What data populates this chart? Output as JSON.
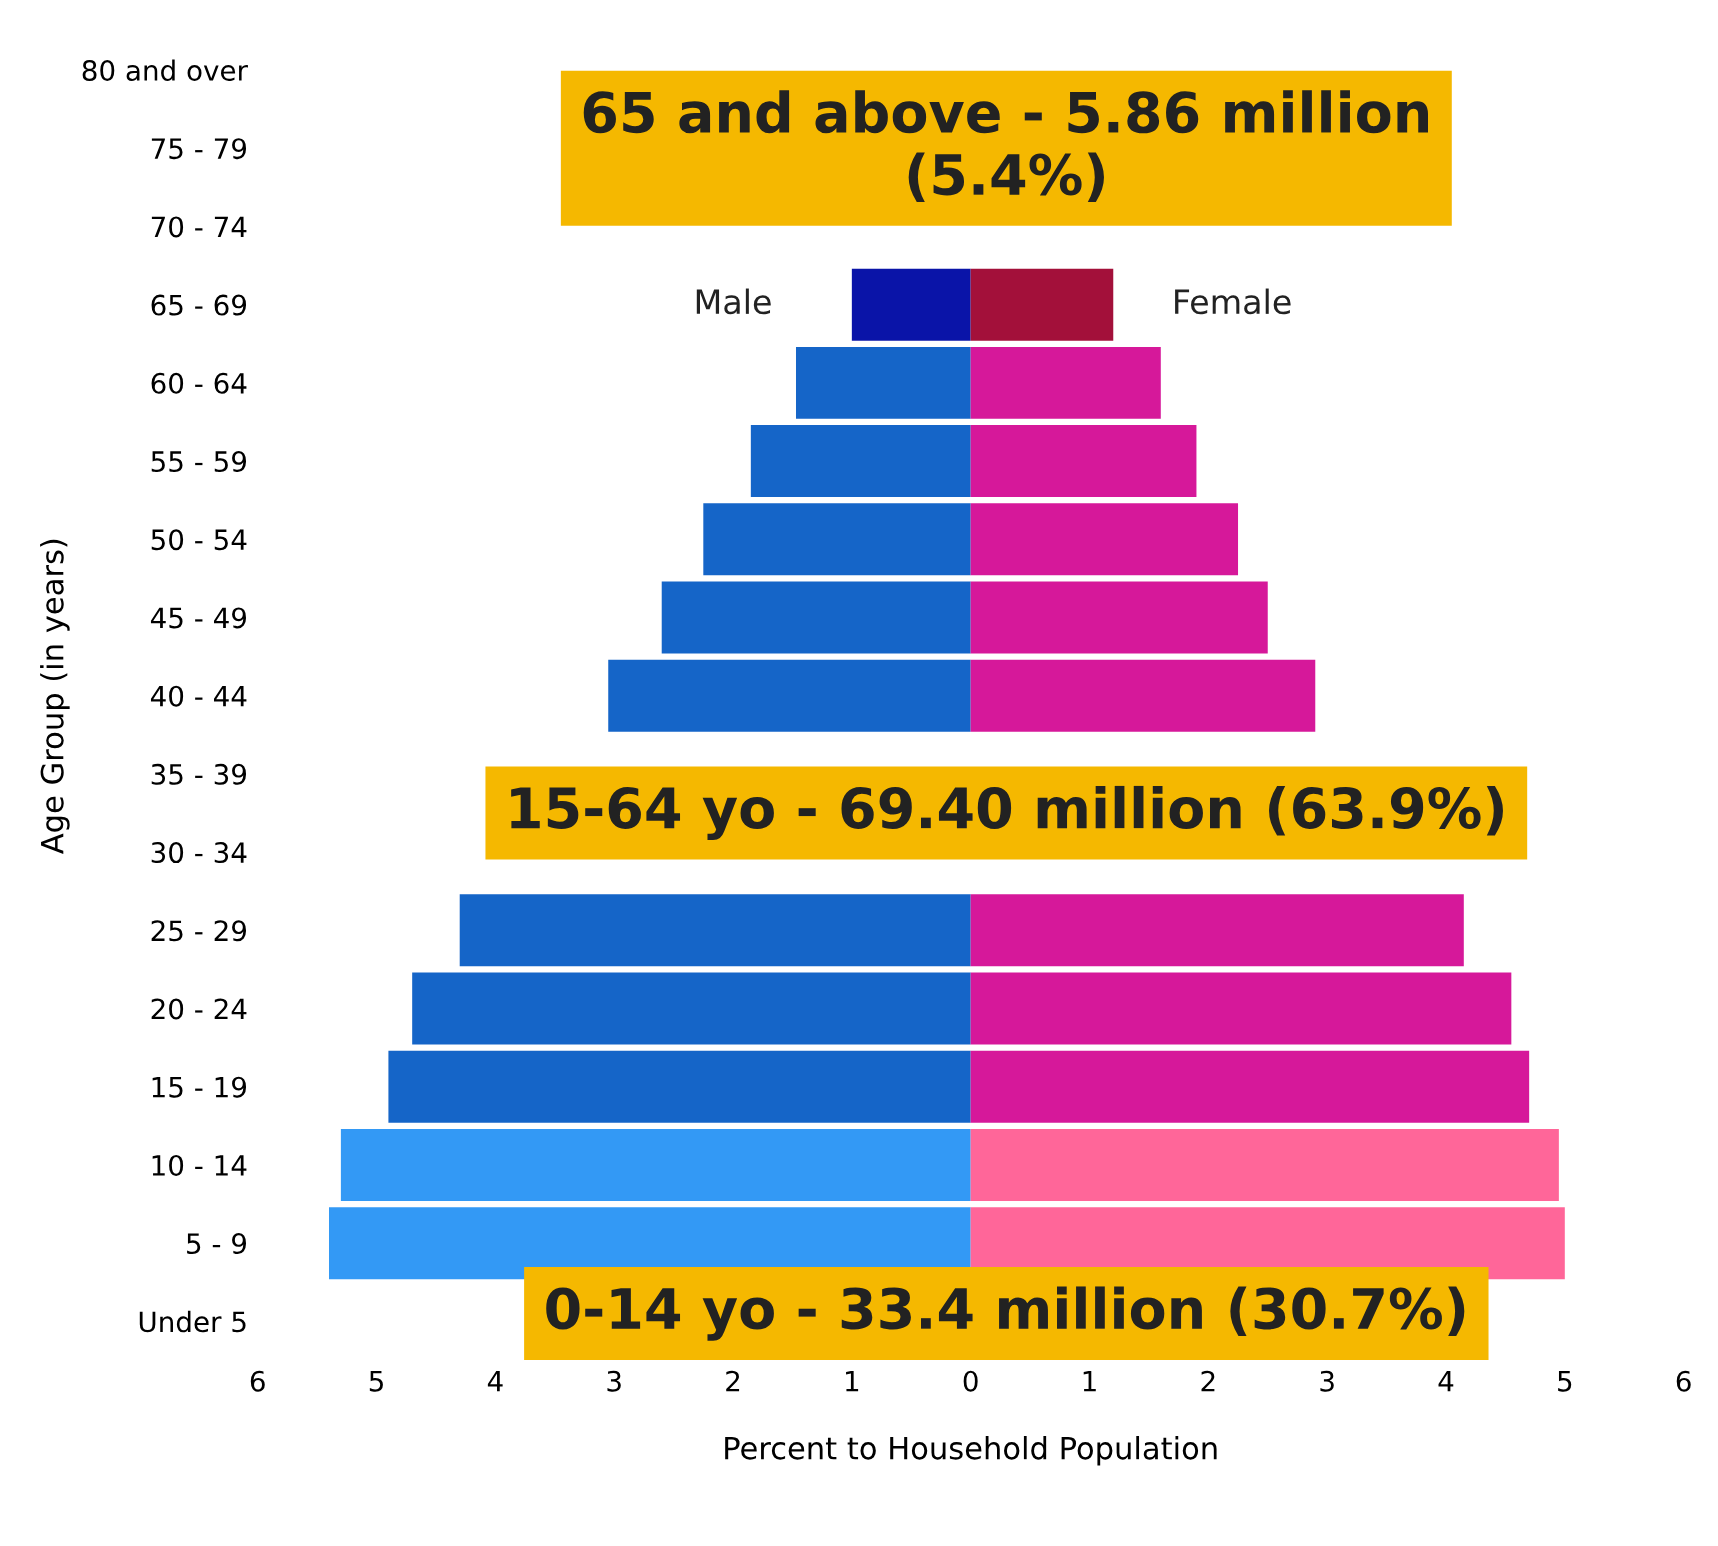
{
  "chart_data": {
    "type": "bar",
    "orientation": "horizontal",
    "stacked": true,
    "categories": [
      "80 and over",
      "75 - 79",
      "70 - 74",
      "65 - 69",
      "60 - 64",
      "55 - 59",
      "50 - 54",
      "45 - 49",
      "40 - 44",
      "35 - 39",
      "30 - 34",
      "25 - 29",
      "20 - 24",
      "15 - 19",
      "10 - 14",
      "5 - 9",
      "Under 5"
    ],
    "series": [
      {
        "name": "Male",
        "values": [
          null,
          null,
          null,
          -1.0,
          -1.47,
          -1.85,
          -2.25,
          -2.6,
          -3.05,
          null,
          null,
          -4.3,
          -4.7,
          -4.9,
          -5.3,
          -5.4,
          null
        ],
        "colors": [
          "#0a14a8",
          "#0a14a8",
          "#0a14a8",
          "#0a14a8",
          "#1565c8",
          "#1565c8",
          "#1565c8",
          "#1565c8",
          "#1565c8",
          "#1565c8",
          "#1565c8",
          "#1565c8",
          "#1565c8",
          "#1565c8",
          "#3399f5",
          "#3399f5",
          "#3399f5"
        ]
      },
      {
        "name": "Female",
        "values": [
          null,
          null,
          null,
          1.2,
          1.6,
          1.9,
          2.25,
          2.5,
          2.9,
          null,
          null,
          4.15,
          4.55,
          4.7,
          4.95,
          5.0,
          null
        ],
        "colors": [
          "#a3103a",
          "#a3103a",
          "#a3103a",
          "#a3103a",
          "#d6189a",
          "#d6189a",
          "#d6189a",
          "#d6189a",
          "#d6189a",
          "#d6189a",
          "#d6189a",
          "#d6189a",
          "#d6189a",
          "#d6189a",
          "#ff6699",
          "#ff6699",
          "#ff6699"
        ]
      }
    ],
    "xlim": [
      -6,
      6
    ],
    "xticks": [
      {
        "value": -6,
        "label": "6"
      },
      {
        "value": -5,
        "label": "5"
      },
      {
        "value": -4,
        "label": "4"
      },
      {
        "value": -3,
        "label": "3"
      },
      {
        "value": -2,
        "label": "2"
      },
      {
        "value": -1,
        "label": "1"
      },
      0,
      1,
      2,
      3,
      4,
      5,
      6
    ],
    "xlabel": "Percent to Household Population",
    "ylabel": "Age Group (in years)",
    "annotations": [
      "65 and above - 5.86 million\n(5.4%)",
      "15-64 yo - 69.40 million (63.9%)",
      "0-14 yo - 33.4 million (30.7%)"
    ],
    "grid": false
  }
}
